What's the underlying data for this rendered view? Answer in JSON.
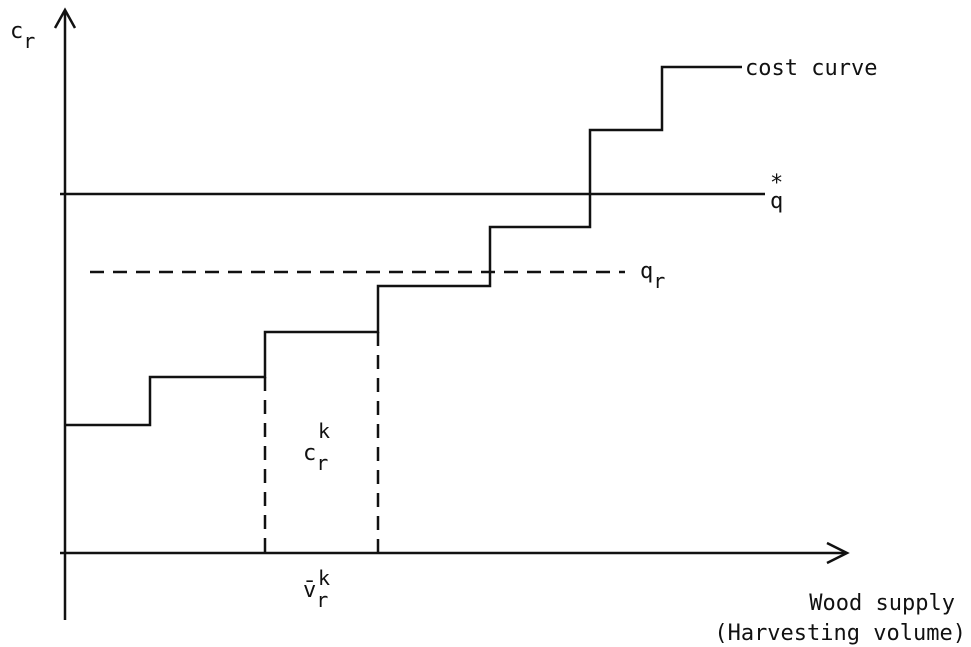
{
  "y_axis_label": {
    "base": "c",
    "sub": "r"
  },
  "curve_label": "cost curve",
  "q_star": {
    "base": "q",
    "mark": "*"
  },
  "q_r": {
    "base": "q",
    "sub": "r"
  },
  "step_label": {
    "base": "c",
    "sup": "k",
    "sub": "r"
  },
  "volume_label": {
    "base": "v̄",
    "sup": "k",
    "sub": "r"
  },
  "x_axis_label": {
    "line1": "Wood supply",
    "line2": "(Harvesting volume)"
  }
}
